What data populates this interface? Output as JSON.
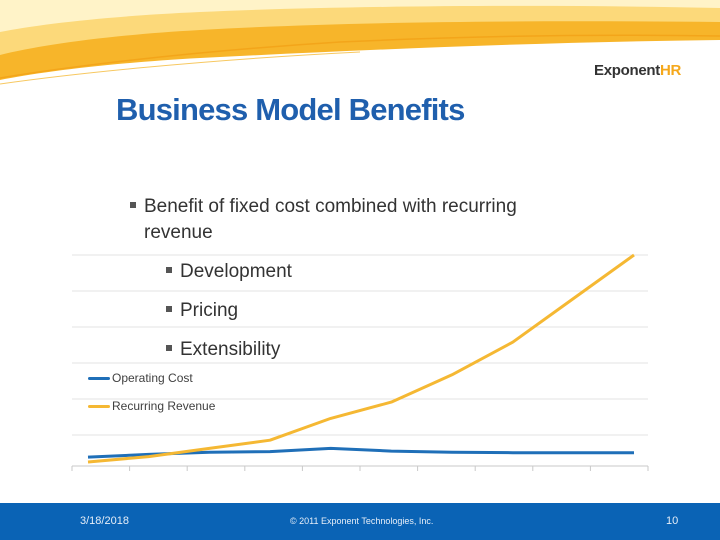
{
  "slide": {
    "title": "Business Model Benefits",
    "bullets": {
      "main": "Benefit of  fixed cost combined with recurring",
      "main_cont": "revenue",
      "sub": [
        "Development",
        "Pricing",
        "Extensibility"
      ]
    }
  },
  "logo": {
    "text_main": "Exponent",
    "text_accent": "HR"
  },
  "footer": {
    "date": "3/18/2018",
    "copyright": "© 2011 Exponent Technologies, Inc.",
    "page": "10"
  },
  "colors": {
    "title": "#1f5fad",
    "accent": "#f5a81c",
    "footer": "#0a63b5",
    "series_cost": "#1f6fb8",
    "series_revenue": "#f5b833"
  },
  "chart_data": {
    "type": "line",
    "x": [
      0,
      1,
      2,
      3,
      4,
      5,
      6,
      7,
      8,
      9
    ],
    "series": [
      {
        "name": "Operating Cost",
        "values": [
          0.9,
          1.4,
          1.8,
          1.9,
          2.5,
          2.0,
          1.8,
          1.7,
          1.7,
          1.7
        ]
      },
      {
        "name": "Recurring Revenue",
        "values": [
          0,
          1.0,
          2.5,
          4.0,
          8.0,
          11.0,
          16.0,
          22.0,
          30.0,
          38.0
        ]
      }
    ],
    "grid": true,
    "legend_position": "left"
  }
}
